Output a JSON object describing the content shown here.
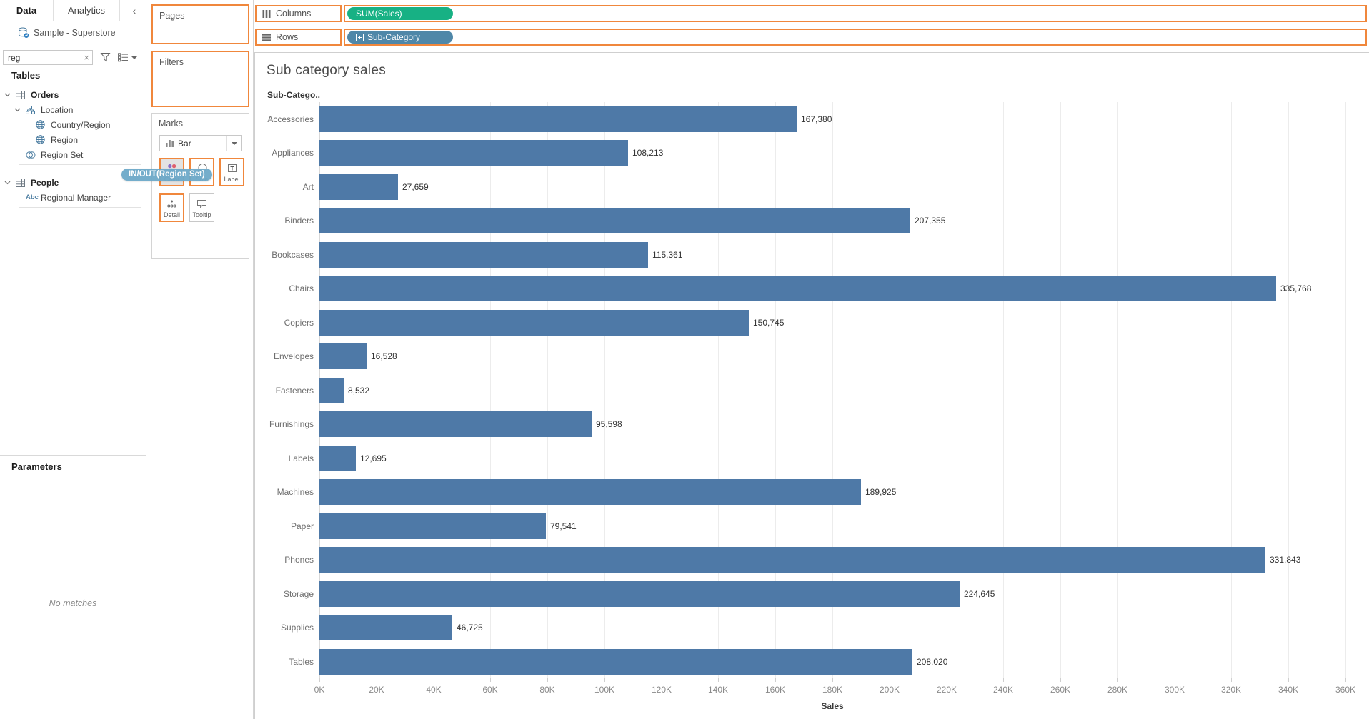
{
  "ui_colors": {
    "drop_highlight": "#f0873c",
    "bar_blue": "#4e79a7",
    "pill_green": "#17b184",
    "pill_blue": "#4f87a8",
    "drag_pill_blue": "#6da9c9"
  },
  "sidebar": {
    "tabs": [
      "Data",
      "Analytics"
    ],
    "collapse_icon": "‹",
    "datasource": "Sample - Superstore",
    "search": {
      "value": "reg",
      "clear": "×"
    },
    "tables_header": "Tables",
    "tree": [
      {
        "label": "Orders",
        "bold": true,
        "indent": 0,
        "chevron": true,
        "icon": "table"
      },
      {
        "label": "Location",
        "bold": false,
        "indent": 1,
        "chevron": true,
        "icon": "hierarchy"
      },
      {
        "label": "Country/Region",
        "bold": false,
        "indent": 2,
        "chevron": false,
        "icon": "globe"
      },
      {
        "label": "Region",
        "bold": false,
        "indent": 2,
        "chevron": false,
        "icon": "globe"
      },
      {
        "label": "Region Set",
        "bold": false,
        "indent": 1,
        "chevron": false,
        "icon": "set",
        "separator_after": true
      },
      {
        "label": "People",
        "bold": true,
        "indent": 0,
        "chevron": true,
        "icon": "table",
        "gap_before": true
      },
      {
        "label": "Regional Manager",
        "bold": false,
        "indent": 1,
        "chevron": false,
        "icon": "abc",
        "separator_after": true
      }
    ],
    "parameters_header": "Parameters",
    "no_matches": "No matches"
  },
  "cards": {
    "pages": "Pages",
    "filters": "Filters",
    "marks": {
      "label": "Marks",
      "type": "Bar",
      "buttons": [
        {
          "label": "Color",
          "icon": "color",
          "highlight": true,
          "active": true
        },
        {
          "label": "Size",
          "icon": "size",
          "highlight": true,
          "active": false
        },
        {
          "label": "Label",
          "icon": "label",
          "highlight": true,
          "active": false
        },
        {
          "label": "Detail",
          "icon": "detail",
          "highlight": true,
          "active": false
        },
        {
          "label": "Tooltip",
          "icon": "tooltip",
          "highlight": false,
          "active": false
        }
      ]
    }
  },
  "drag_pill": {
    "text": "IN/OUT(Region Set)"
  },
  "shelves": {
    "columns": {
      "label": "Columns",
      "pill": {
        "text": "SUM(Sales)"
      }
    },
    "rows": {
      "label": "Rows",
      "pill": {
        "text": "Sub-Category",
        "expand_icon": true
      }
    }
  },
  "chart_data": {
    "type": "bar",
    "orientation": "horizontal",
    "title": "Sub category sales",
    "col_header": "Sub-Catego..",
    "categories": [
      "Accessories",
      "Appliances",
      "Art",
      "Binders",
      "Bookcases",
      "Chairs",
      "Copiers",
      "Envelopes",
      "Fasteners",
      "Furnishings",
      "Labels",
      "Machines",
      "Paper",
      "Phones",
      "Storage",
      "Supplies",
      "Tables"
    ],
    "values": [
      167380,
      108213,
      27659,
      207355,
      115361,
      335768,
      150745,
      16528,
      8532,
      95598,
      12695,
      189925,
      79541,
      331843,
      224645,
      46725,
      208020
    ],
    "value_labels": [
      "167,380",
      "108,213",
      "27,659",
      "207,355",
      "115,361",
      "335,768",
      "150,745",
      "16,528",
      "8,532",
      "95,598",
      "12,695",
      "189,925",
      "79,541",
      "331,843",
      "224,645",
      "46,725",
      "208,020"
    ],
    "xlabel": "Sales",
    "xlim": [
      0,
      360000
    ],
    "xticks": [
      0,
      20000,
      40000,
      60000,
      80000,
      100000,
      120000,
      140000,
      160000,
      180000,
      200000,
      220000,
      240000,
      260000,
      280000,
      300000,
      320000,
      340000,
      360000
    ],
    "xtick_labels": [
      "0K",
      "20K",
      "40K",
      "60K",
      "80K",
      "100K",
      "120K",
      "140K",
      "160K",
      "180K",
      "200K",
      "220K",
      "240K",
      "260K",
      "280K",
      "300K",
      "320K",
      "340K",
      "360K"
    ],
    "grid": true
  }
}
